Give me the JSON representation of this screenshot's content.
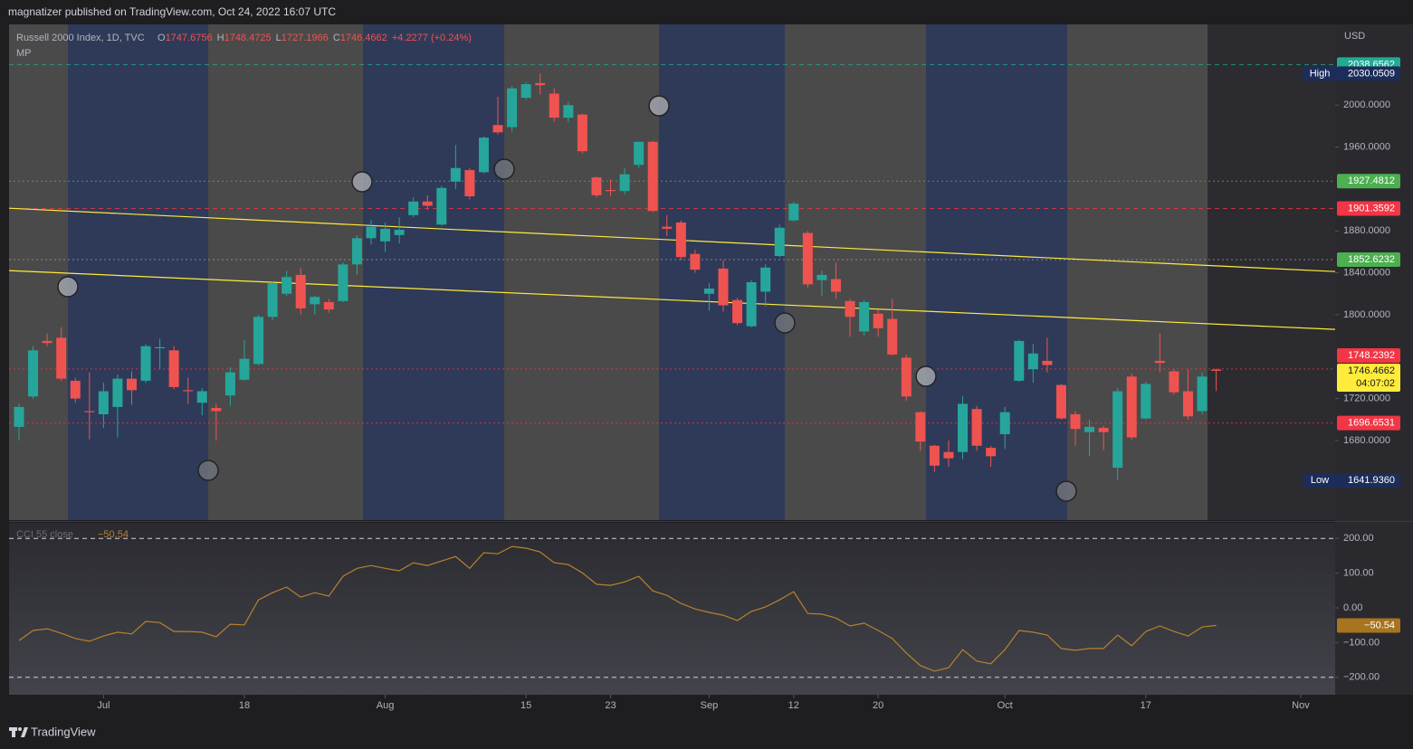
{
  "header": {
    "text": "magnatizer published on TradingView.com, Oct 24, 2022 16:07 UTC"
  },
  "footer": {
    "brand": "TradingView"
  },
  "chart_data": [
    {
      "type": "candlestick",
      "legend": {
        "title": "Russell 2000 Index, 1D, TVC",
        "open_label": "O",
        "high_label": "H",
        "low_label": "L",
        "close_label": "C",
        "change": "+4.2277 (+0.24%)",
        "study": "MP"
      },
      "currency": "USD",
      "up_color": "#26a69a",
      "down_color": "#ef5350",
      "categories": [
        "2022-06-23",
        "2022-06-24",
        "2022-06-27",
        "2022-06-28",
        "2022-06-29",
        "2022-06-30",
        "2022-07-01",
        "2022-07-05",
        "2022-07-06",
        "2022-07-07",
        "2022-07-08",
        "2022-07-11",
        "2022-07-12",
        "2022-07-13",
        "2022-07-14",
        "2022-07-15",
        "2022-07-18",
        "2022-07-19",
        "2022-07-20",
        "2022-07-21",
        "2022-07-22",
        "2022-07-25",
        "2022-07-26",
        "2022-07-27",
        "2022-07-28",
        "2022-07-29",
        "2022-08-01",
        "2022-08-02",
        "2022-08-03",
        "2022-08-04",
        "2022-08-05",
        "2022-08-08",
        "2022-08-09",
        "2022-08-10",
        "2022-08-11",
        "2022-08-12",
        "2022-08-15",
        "2022-08-16",
        "2022-08-17",
        "2022-08-18",
        "2022-08-19",
        "2022-08-22",
        "2022-08-23",
        "2022-08-24",
        "2022-08-25",
        "2022-08-26",
        "2022-08-29",
        "2022-08-30",
        "2022-08-31",
        "2022-09-01",
        "2022-09-02",
        "2022-09-06",
        "2022-09-07",
        "2022-09-08",
        "2022-09-09",
        "2022-09-12",
        "2022-09-13",
        "2022-09-14",
        "2022-09-15",
        "2022-09-16",
        "2022-09-19",
        "2022-09-20",
        "2022-09-21",
        "2022-09-22",
        "2022-09-23",
        "2022-09-26",
        "2022-09-27",
        "2022-09-28",
        "2022-09-29",
        "2022-09-30",
        "2022-10-03",
        "2022-10-04",
        "2022-10-05",
        "2022-10-06",
        "2022-10-07",
        "2022-10-10",
        "2022-10-11",
        "2022-10-12",
        "2022-10-13",
        "2022-10-14",
        "2022-10-17",
        "2022-10-18",
        "2022-10-19",
        "2022-10-20",
        "2022-10-21",
        "2022-10-24"
      ],
      "open": [
        1693,
        1722,
        1775,
        1778,
        1737,
        1708,
        1705,
        1712,
        1739,
        1737,
        1768,
        1766,
        1728,
        1716,
        1711,
        1723,
        1738,
        1753,
        1798,
        1820,
        1838,
        1810,
        1812,
        1813,
        1848,
        1873,
        1870,
        1876,
        1895,
        1908,
        1886,
        1927,
        1938,
        1936,
        1981,
        1979,
        2007,
        2021,
        2011,
        1988,
        1991,
        1931,
        1919,
        1918,
        1943,
        1965,
        1884,
        1888,
        1858,
        1820,
        1844,
        1814,
        1789,
        1822,
        1856,
        1890,
        1878,
        1833,
        1834,
        1813,
        1784,
        1801,
        1796,
        1759,
        1707,
        1675,
        1669,
        1669,
        1710,
        1673,
        1686,
        1737,
        1748,
        1756,
        1733,
        1705,
        1688,
        1692,
        1654,
        1741,
        1701,
        1756,
        1746,
        1727,
        1708,
        1747.6756
      ],
      "high": [
        1715,
        1770,
        1782,
        1788,
        1740,
        1745,
        1735,
        1743,
        1746,
        1772,
        1777,
        1770,
        1740,
        1730,
        1715,
        1750,
        1776,
        1800,
        1832,
        1842,
        1845,
        1818,
        1815,
        1850,
        1876,
        1890,
        1888,
        1893,
        1912,
        1914,
        1923,
        1962,
        1940,
        1970,
        2008,
        2018,
        2022,
        2030.0509,
        2016,
        2003,
        1992,
        1932,
        1929,
        1940,
        1965,
        1966,
        1895,
        1890,
        1862,
        1830,
        1852,
        1816,
        1833,
        1848,
        1886,
        1908,
        1880,
        1842,
        1850,
        1815,
        1814,
        1805,
        1815,
        1762,
        1708,
        1676,
        1680,
        1722,
        1713,
        1675,
        1712,
        1776,
        1772,
        1778,
        1734,
        1708,
        1700,
        1694,
        1730,
        1744,
        1736,
        1782,
        1748,
        1748,
        1745,
        1748.4725
      ],
      "low": [
        1680,
        1720,
        1770,
        1737,
        1716,
        1681,
        1692,
        1683,
        1714,
        1735,
        1748,
        1729,
        1715,
        1704,
        1680,
        1713,
        1737,
        1752,
        1795,
        1818,
        1800,
        1800,
        1802,
        1812,
        1838,
        1867,
        1860,
        1868,
        1893,
        1900,
        1885,
        1920,
        1910,
        1935,
        1972,
        1975,
        2005,
        2010,
        1984,
        1984,
        1954,
        1912,
        1913,
        1915,
        1940,
        1898,
        1875,
        1852,
        1840,
        1804,
        1803,
        1790,
        1788,
        1808,
        1855,
        1889,
        1826,
        1818,
        1815,
        1779,
        1780,
        1779,
        1761,
        1718,
        1670,
        1650,
        1655,
        1662,
        1670,
        1655,
        1672,
        1736,
        1735,
        1745,
        1700,
        1675,
        1665,
        1671,
        1641.936,
        1681,
        1700,
        1745,
        1724,
        1700,
        1705,
        1727.1966
      ],
      "close": [
        1712,
        1766,
        1773,
        1739,
        1720,
        1707,
        1727,
        1739,
        1728,
        1770,
        1769,
        1731,
        1727,
        1727,
        1708,
        1745,
        1758,
        1798,
        1830,
        1836,
        1806,
        1817,
        1805,
        1848,
        1873,
        1884,
        1882,
        1881,
        1908,
        1904,
        1921,
        1940,
        1913,
        1969,
        1974,
        2016,
        2020,
        2019,
        1988,
        2000,
        1956,
        1914,
        1918,
        1934,
        1965,
        1899,
        1882,
        1855,
        1843,
        1825,
        1809,
        1792,
        1831,
        1845,
        1883,
        1906,
        1829,
        1838,
        1822,
        1798,
        1812,
        1787,
        1762,
        1722,
        1679,
        1656,
        1663,
        1715,
        1675,
        1665,
        1707,
        1775,
        1763,
        1752,
        1701,
        1691,
        1693,
        1688,
        1727,
        1683,
        1734,
        1754,
        1726,
        1703,
        1741,
        1746.4662
      ],
      "ylim": [
        1604,
        2077
      ],
      "yticks": [
        {
          "value": 2000,
          "label": "2000.0000"
        },
        {
          "value": 1960,
          "label": "1960.0000"
        },
        {
          "value": 1880,
          "label": "1880.0000"
        },
        {
          "value": 1840,
          "label": "1840.0000"
        },
        {
          "value": 1800,
          "label": "1800.0000"
        },
        {
          "value": 1720,
          "label": "1720.0000"
        },
        {
          "value": 1680,
          "label": "1680.0000"
        }
      ],
      "xticks": [
        {
          "value": "2022-07-01",
          "label": "Jul"
        },
        {
          "value": "2022-07-18",
          "label": "18"
        },
        {
          "value": "2022-08-01",
          "label": "Aug"
        },
        {
          "value": "2022-08-15",
          "label": "15"
        },
        {
          "value": "2022-08-23",
          "label": "23"
        },
        {
          "value": "2022-09-01",
          "label": "Sep"
        },
        {
          "value": "2022-09-12",
          "label": "12"
        },
        {
          "value": "2022-09-20",
          "label": "20"
        },
        {
          "value": "2022-10-03",
          "label": "Oct"
        },
        {
          "value": "2022-10-17",
          "label": "17"
        },
        {
          "value": "2022-11-01",
          "label": "Nov"
        }
      ],
      "price_lines": [
        {
          "value": 2038.6562,
          "color": "#22ab94",
          "dash": "5 4"
        },
        {
          "value": 1927.4812,
          "color": "#4caf50",
          "dash": "2 3"
        },
        {
          "value": 1901.3592,
          "color": "#f23645",
          "dash": "5 4"
        },
        {
          "value": 1852.6232,
          "color": "#4caf50",
          "line_color": "#9598a1",
          "dash": "2 3"
        },
        {
          "value": 1748.2392,
          "color": "#f23645",
          "dash": "2 3"
        },
        {
          "value": 1696.6531,
          "color": "#f23645",
          "dash": "2 3"
        }
      ],
      "high_marker": {
        "label": "High",
        "value": 2030.0509
      },
      "low_marker": {
        "label": "Low",
        "value": 1641.936,
        "value_label": "1641.9360"
      },
      "countdown": "04:07:02",
      "trendlines": [
        {
          "color": "#ffeb3b",
          "from": 1901.6,
          "to": 1841.2
        },
        {
          "color": "#ffeb3b",
          "from": 1842.1,
          "to": 1786.0
        }
      ]
    },
    {
      "type": "line",
      "name": "CCI 55 close",
      "color": "#b8822c",
      "values": [
        -94,
        -65,
        -60,
        -73,
        -88,
        -96,
        -81,
        -70,
        -75,
        -39,
        -42,
        -68,
        -68,
        -70,
        -83,
        -47,
        -49,
        23,
        44,
        60,
        31,
        44,
        34,
        91,
        114,
        122,
        114,
        107,
        130,
        122,
        135,
        148,
        114,
        159,
        156,
        177,
        172,
        161,
        130,
        125,
        101,
        68,
        65,
        75,
        91,
        49,
        36,
        13,
        -3,
        -13,
        -21,
        -36,
        -10,
        3,
        23,
        47,
        -16,
        -18,
        -29,
        -52,
        -44,
        -65,
        -88,
        -130,
        -166,
        -182,
        -172,
        -120,
        -153,
        -161,
        -120,
        -65,
        -70,
        -78,
        -117,
        -122,
        -117,
        -117,
        -78,
        -109,
        -68,
        -52,
        -68,
        -81,
        -55,
        -50.54
      ],
      "badge": {
        "value": -50.54,
        "label": "−50.54"
      },
      "ylim": [
        -250,
        245
      ],
      "yticks": [
        {
          "value": 200,
          "label": "200.00"
        },
        {
          "value": 100,
          "label": "100.00"
        },
        {
          "value": 0,
          "label": "0.00"
        },
        {
          "value": -100,
          "label": "−100.00"
        },
        {
          "value": -200,
          "label": "−200.00"
        }
      ],
      "levels": [
        200,
        -200
      ]
    }
  ]
}
